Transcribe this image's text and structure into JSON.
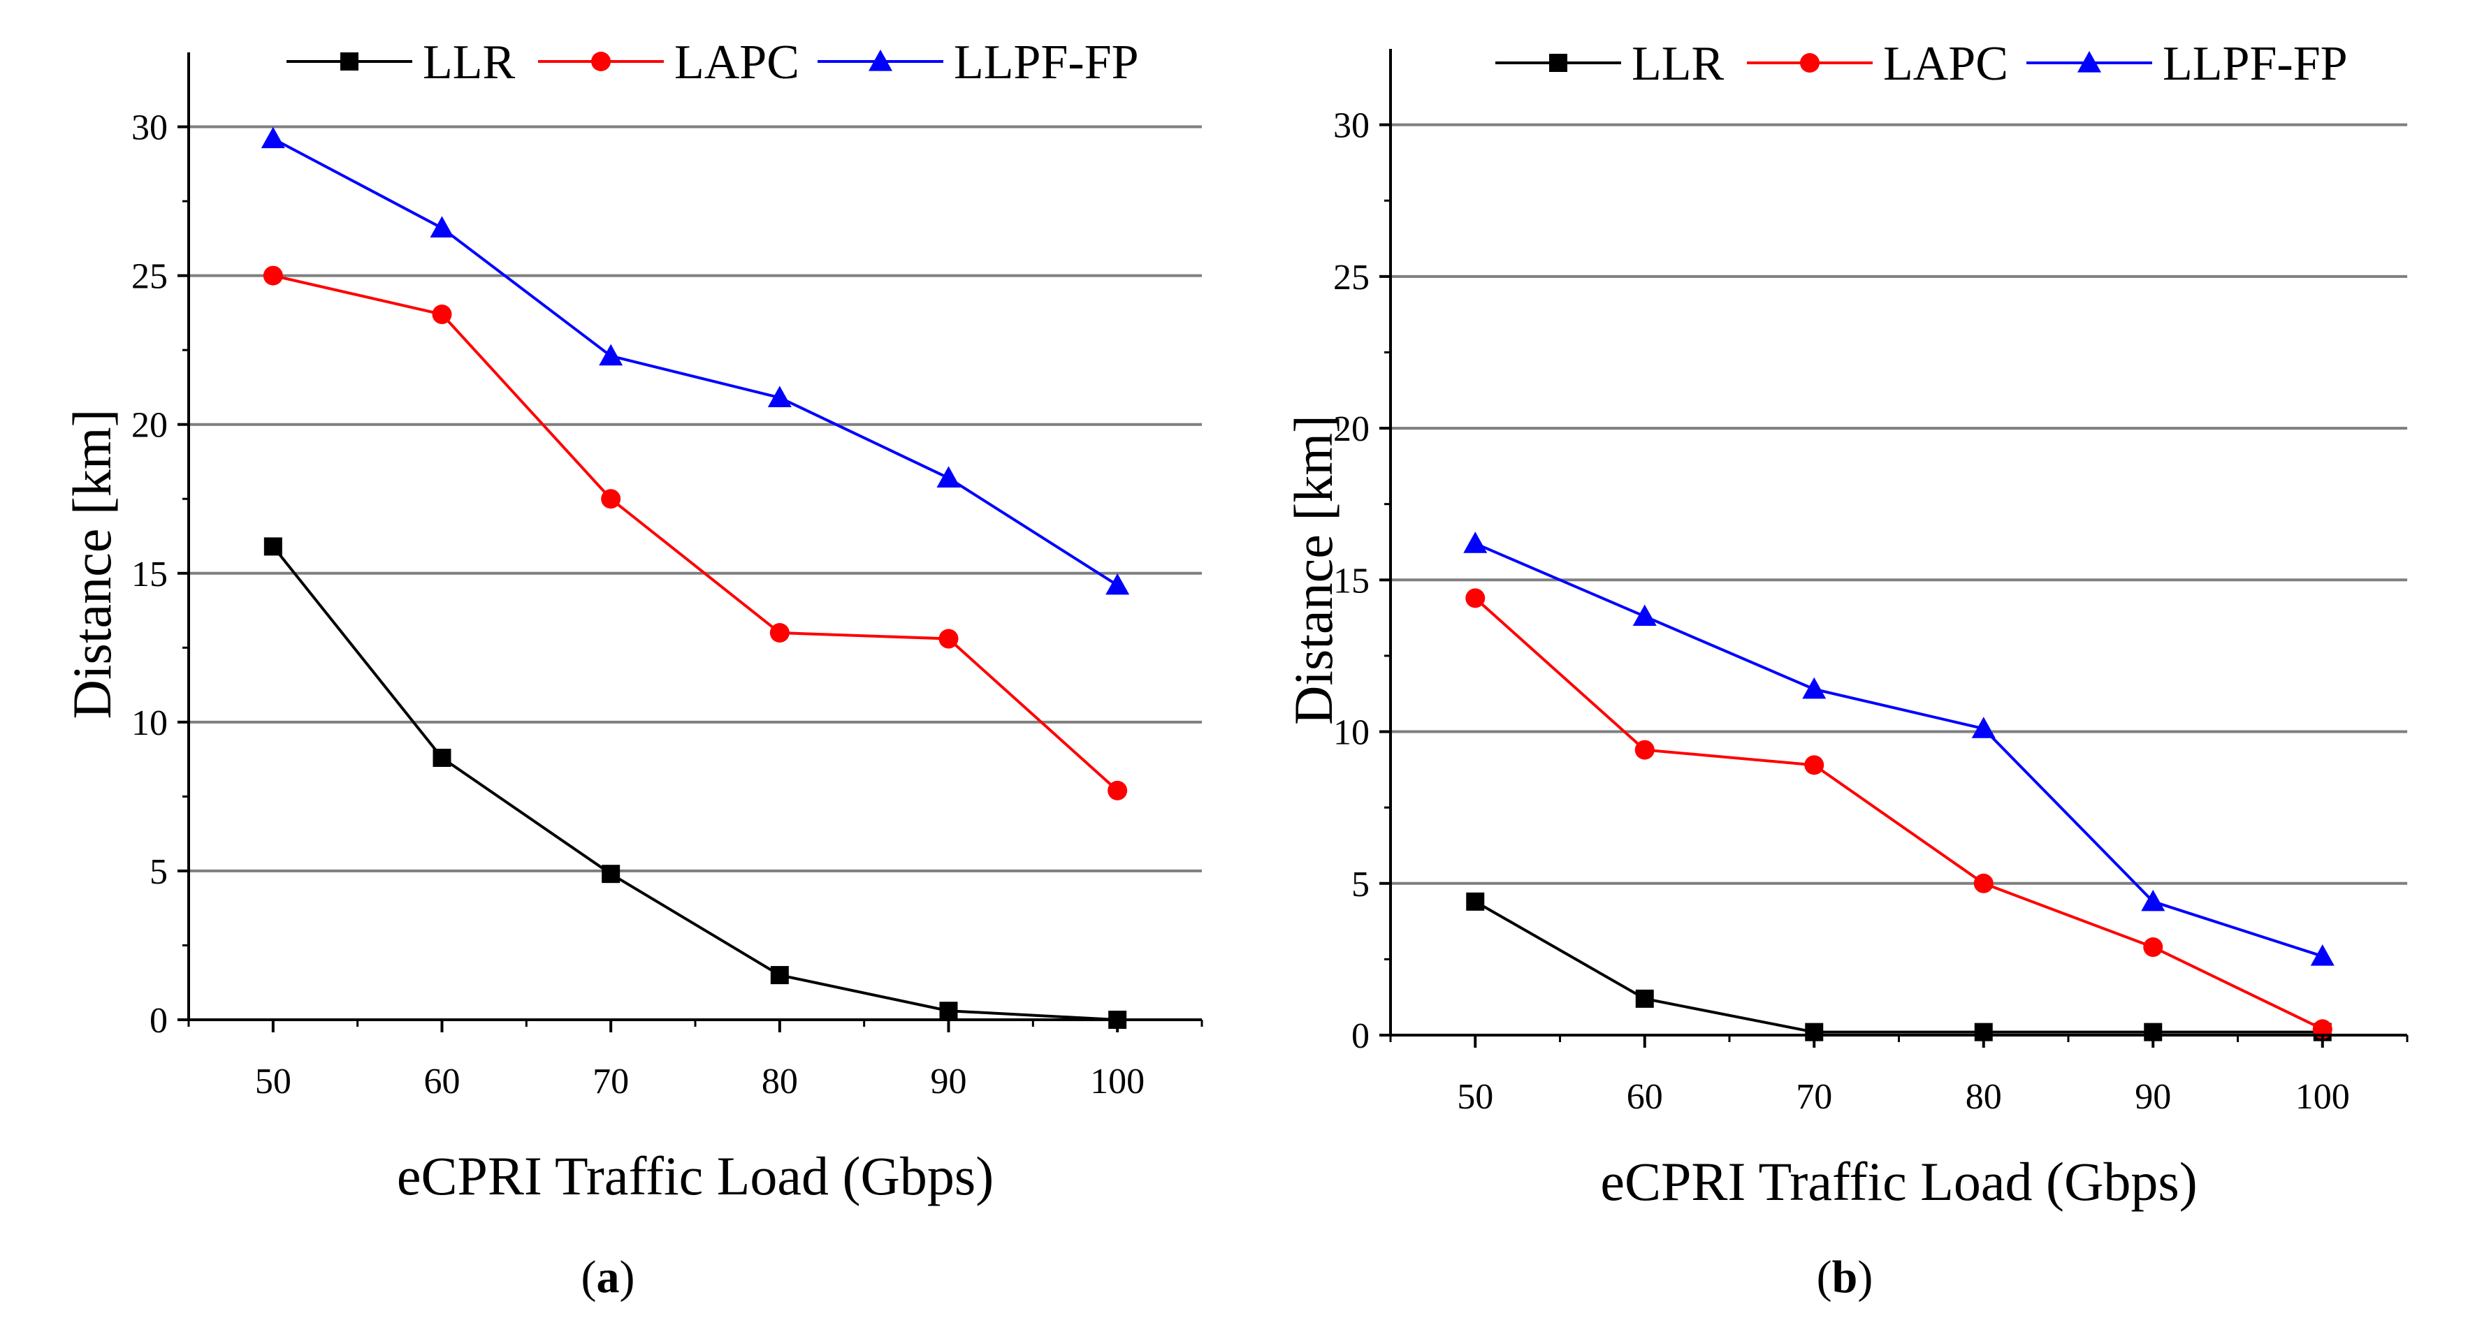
{
  "figure": {
    "colors": {
      "LLR": "#000000",
      "LAPC": "#ff0000",
      "LLPF-FP": "#0000ff",
      "grid": "#7f7f7f",
      "axis": "#000000"
    }
  },
  "chart_data": [
    {
      "type": "line",
      "title": "",
      "caption_letter": "a",
      "xlabel": "eCPRI Traffic Load (Gbps)",
      "ylabel": "Distance [km]",
      "x": [
        50,
        60,
        70,
        80,
        90,
        100
      ],
      "xticks": [
        50,
        60,
        70,
        80,
        90,
        100
      ],
      "yticks": [
        0,
        5,
        10,
        15,
        20,
        25,
        30
      ],
      "xlim": [
        45,
        105
      ],
      "ylim": [
        0,
        32.5
      ],
      "grid": "horizontal",
      "legend": "top",
      "series": [
        {
          "name": "LLR",
          "marker": "square",
          "values": [
            15.9,
            8.8,
            4.9,
            1.5,
            0.3,
            0.0
          ]
        },
        {
          "name": "LAPC",
          "marker": "circle",
          "values": [
            25.0,
            23.7,
            17.5,
            13.0,
            12.8,
            7.7
          ]
        },
        {
          "name": "LLPF-FP",
          "marker": "triangle",
          "values": [
            29.6,
            26.6,
            22.3,
            20.9,
            18.2,
            14.6
          ]
        }
      ]
    },
    {
      "type": "line",
      "title": "",
      "caption_letter": "b",
      "xlabel": "eCPRI Traffic Load (Gbps)",
      "ylabel": "Distance [km]",
      "x": [
        50,
        60,
        70,
        80,
        90,
        100
      ],
      "xticks": [
        50,
        60,
        70,
        80,
        90,
        100
      ],
      "yticks": [
        0,
        5,
        10,
        15,
        20,
        25,
        30
      ],
      "xlim": [
        45,
        105
      ],
      "ylim": [
        0,
        32.5
      ],
      "grid": "horizontal",
      "legend": "top",
      "series": [
        {
          "name": "LLR",
          "marker": "square",
          "values": [
            4.4,
            1.2,
            0.1,
            0.1,
            0.1,
            0.1
          ]
        },
        {
          "name": "LAPC",
          "marker": "circle",
          "values": [
            14.4,
            9.4,
            8.9,
            5.0,
            2.9,
            0.2
          ]
        },
        {
          "name": "LLPF-FP",
          "marker": "triangle",
          "values": [
            16.2,
            13.8,
            11.4,
            10.1,
            4.4,
            2.6
          ]
        }
      ]
    }
  ]
}
